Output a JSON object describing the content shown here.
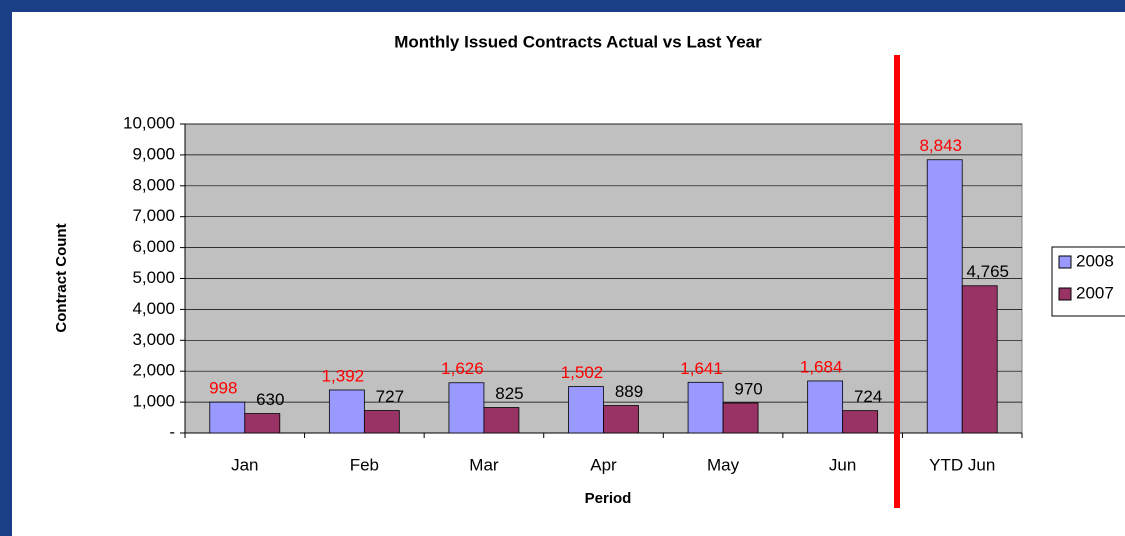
{
  "chart_data": {
    "type": "bar",
    "title": "Monthly Issued Contracts Actual vs Last Year",
    "x_label": "Period",
    "y_label": "Contract Count",
    "categories": [
      "Jan",
      "Feb",
      "Mar",
      "Apr",
      "May",
      "Jun",
      "YTD Jun"
    ],
    "series": [
      {
        "name": "2008",
        "color": "#9999ff",
        "label_color": "#ff0000",
        "values": [
          998,
          1392,
          1626,
          1502,
          1641,
          1684,
          8843
        ],
        "value_labels": [
          "998",
          "1,392",
          "1,626",
          "1,502",
          "1,641",
          "1,684",
          "8,843"
        ]
      },
      {
        "name": "2007",
        "color": "#993366",
        "label_color": "#000000",
        "values": [
          630,
          727,
          825,
          889,
          970,
          724,
          4765
        ],
        "value_labels": [
          "630",
          "727",
          "825",
          "889",
          "970",
          "724",
          "4,765"
        ]
      }
    ],
    "ylim": [
      0,
      10000
    ],
    "yticks": [
      {
        "value": 0,
        "label": "-"
      },
      {
        "value": 1000,
        "label": "1,000"
      },
      {
        "value": 2000,
        "label": "2,000"
      },
      {
        "value": 3000,
        "label": "3,000"
      },
      {
        "value": 4000,
        "label": "4,000"
      },
      {
        "value": 5000,
        "label": "5,000"
      },
      {
        "value": 6000,
        "label": "6,000"
      },
      {
        "value": 7000,
        "label": "7,000"
      },
      {
        "value": 8000,
        "label": "8,000"
      },
      {
        "value": 9000,
        "label": "9,000"
      },
      {
        "value": 10000,
        "label": "10,000"
      }
    ],
    "grid": true,
    "legend": "right"
  }
}
